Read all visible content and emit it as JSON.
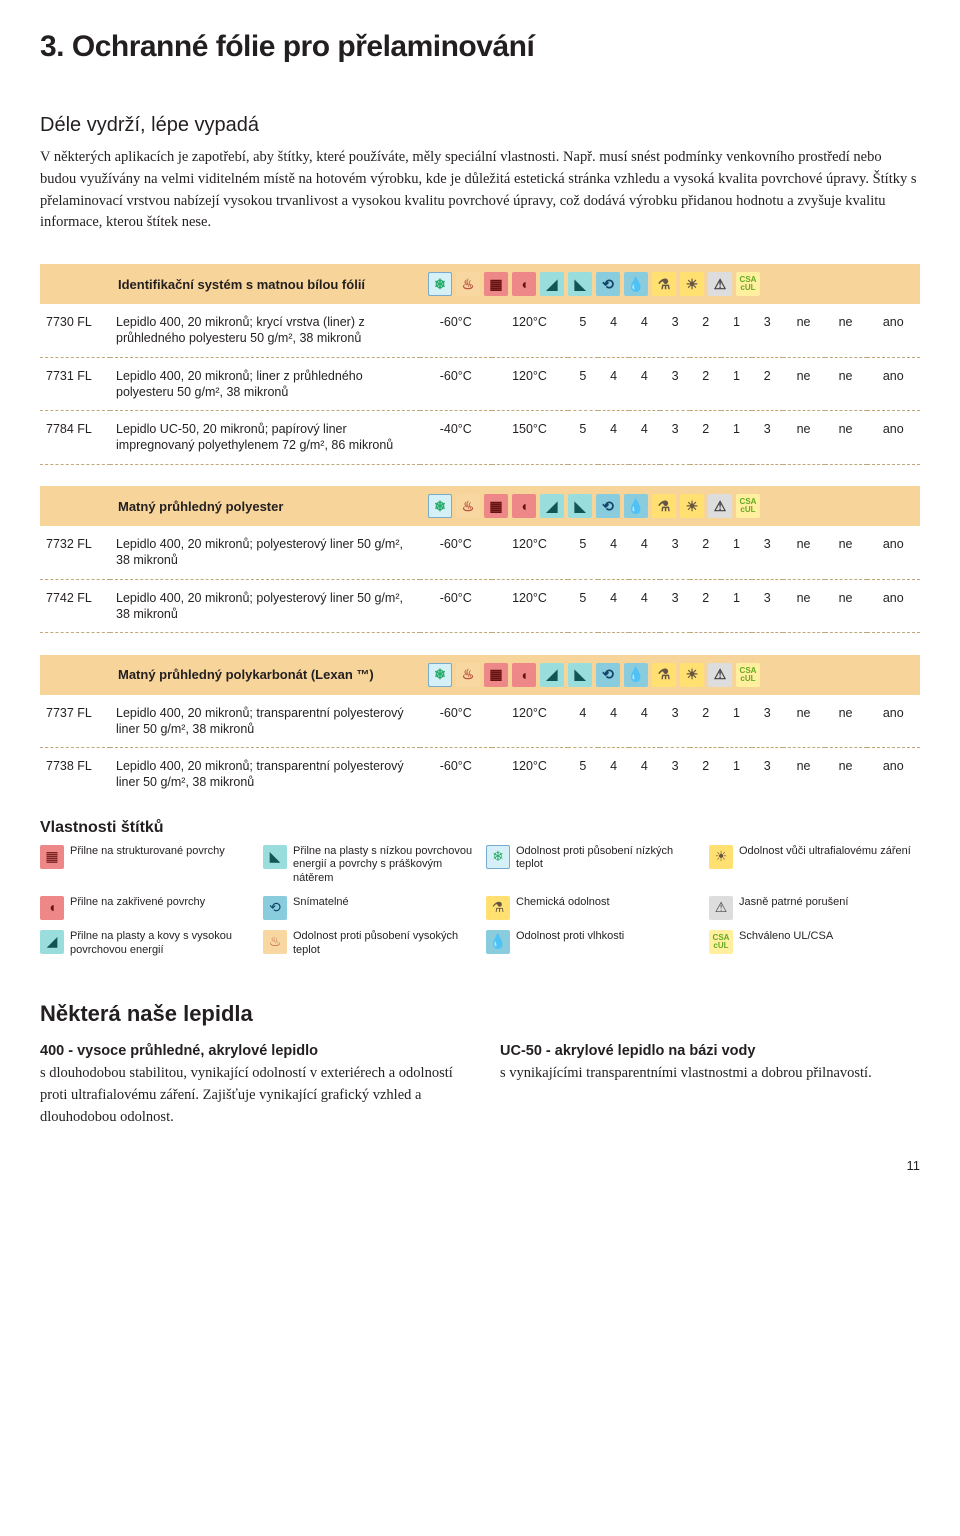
{
  "title": "3. Ochranné fólie pro přelaminování",
  "subtitle": "Déle vydrží, lépe vypadá",
  "intro": "V některých aplikacích je zapotřebí, aby štítky, které používáte, měly speciální vlastnosti. Např. musí snést podmínky venkovního prostředí nebo budou využívány na velmi viditelném místě na hotovém výrobku, kde je důležitá estetická stránka vzhledu a vysoká kvalita povrchové úpravy. Štítky s přelaminovací vrstvou nabízejí vysokou trvanlivost a vysokou kvalitu povrchové úpravy, což dodává výrobku přidanou hodnotu a zvyšuje kvalitu informace, kterou štítek nese.",
  "groups": [
    {
      "header": "Identifikační systém s matnou bílou fólií",
      "rows": [
        {
          "id": "7730 FL",
          "desc": "Lepidlo 400, 20 mikronů; krycí vrstva (liner) z průhledného polyesteru 50 g/m², 38 mikronů",
          "cols": [
            "-60°C",
            "120°C",
            "5",
            "4",
            "4",
            "3",
            "2",
            "1",
            "3",
            "ne",
            "ne",
            "ano"
          ]
        },
        {
          "id": "7731 FL",
          "desc": "Lepidlo 400, 20 mikronů; liner z průhledného polyesteru 50 g/m², 38 mikronů",
          "cols": [
            "-60°C",
            "120°C",
            "5",
            "4",
            "4",
            "3",
            "2",
            "1",
            "2",
            "ne",
            "ne",
            "ano"
          ]
        },
        {
          "id": "7784 FL",
          "desc": "Lepidlo UC-50, 20 mikronů; papírový liner impregnovaný polyethylenem 72 g/m², 86 mikronů",
          "cols": [
            "-40°C",
            "150°C",
            "5",
            "4",
            "4",
            "3",
            "2",
            "1",
            "3",
            "ne",
            "ne",
            "ano"
          ]
        }
      ]
    },
    {
      "header": "Matný průhledný polyester",
      "rows": [
        {
          "id": "7732 FL",
          "desc": "Lepidlo 400, 20 mikronů; polyesterový liner 50 g/m², 38 mikronů",
          "cols": [
            "-60°C",
            "120°C",
            "5",
            "4",
            "4",
            "3",
            "2",
            "1",
            "3",
            "ne",
            "ne",
            "ano"
          ]
        },
        {
          "id": "7742 FL",
          "desc": "Lepidlo 400, 20 mikronů; polyesterový liner 50 g/m², 38 mikronů",
          "cols": [
            "-60°C",
            "120°C",
            "5",
            "4",
            "4",
            "3",
            "2",
            "1",
            "3",
            "ne",
            "ne",
            "ano"
          ]
        }
      ]
    },
    {
      "header": "Matný průhledný polykarbonát (Lexan ™)",
      "rows": [
        {
          "id": "7737 FL",
          "desc": "Lepidlo 400, 20 mikronů; transparentní polyesterový liner 50 g/m², 38 mikronů",
          "cols": [
            "-60°C",
            "120°C",
            "4",
            "4",
            "4",
            "3",
            "2",
            "1",
            "3",
            "ne",
            "ne",
            "ano"
          ]
        },
        {
          "id": "7738 FL",
          "desc": "Lepidlo 400, 20 mikronů; transparentní polyesterový liner 50 g/m², 38 mikronů",
          "cols": [
            "-60°C",
            "120°C",
            "5",
            "4",
            "4",
            "3",
            "2",
            "1",
            "3",
            "ne",
            "ne",
            "ano"
          ]
        }
      ]
    }
  ],
  "icons": [
    {
      "name": "temp-lo-icon",
      "cls": "ic-temp-lo",
      "glyph": "❄"
    },
    {
      "name": "temp-hi-icon",
      "cls": "ic-temp-hi",
      "glyph": "♨"
    },
    {
      "name": "structured-icon",
      "cls": "ic-struct",
      "glyph": "▦"
    },
    {
      "name": "curved-icon",
      "cls": "ic-curve",
      "glyph": "◖"
    },
    {
      "name": "hse-icon",
      "cls": "ic-hse",
      "glyph": "◢"
    },
    {
      "name": "lse-icon",
      "cls": "ic-lse",
      "glyph": "◣"
    },
    {
      "name": "removable-icon",
      "cls": "ic-remov",
      "glyph": "⟲"
    },
    {
      "name": "moisture-icon",
      "cls": "ic-moist",
      "glyph": "💧"
    },
    {
      "name": "chemical-icon",
      "cls": "ic-chem",
      "glyph": "⚗"
    },
    {
      "name": "uv-icon",
      "cls": "ic-uv",
      "glyph": "☀"
    },
    {
      "name": "tamper-icon",
      "cls": "ic-tamp",
      "glyph": "⚠"
    },
    {
      "name": "ul-csa-icon",
      "cls": "ic-ul",
      "glyph": "CSA\ncUL"
    }
  ],
  "legend": {
    "title": "Vlastnosti štítků",
    "items": [
      {
        "icon": 2,
        "text": "Přilne na strukturované povrchy"
      },
      {
        "icon": 5,
        "text": "Přilne na plasty s nízkou povrchovou energií a povrchy s práškovým nátěrem"
      },
      {
        "icon": 0,
        "text": "Odolnost proti působení nízkých teplot"
      },
      {
        "icon": 9,
        "text": "Odolnost vůči ultrafialovému záření"
      },
      {
        "icon": 3,
        "text": "Přilne na zakřivené povrchy"
      },
      {
        "icon": 6,
        "text": "Snímatelné"
      },
      {
        "icon": 8,
        "text": "Chemická odolnost"
      },
      {
        "icon": 10,
        "text": "Jasně patrné porušení"
      },
      {
        "icon": 4,
        "text": "Přilne na plasty a kovy s vysokou povrchovou energií"
      },
      {
        "icon": 1,
        "text": "Odolnost proti působení vysokých teplot"
      },
      {
        "icon": 7,
        "text": "Odolnost proti vlhkosti"
      },
      {
        "icon": 11,
        "text": "Schváleno UL/CSA"
      }
    ]
  },
  "adhesives": {
    "title": "Některá naše lepidla",
    "left": {
      "bold": "400 - vysoce průhledné, akrylové lepidlo",
      "body": "s dlouhodobou stabilitou, vynikající odolností v exteriérech a odolností proti ultrafialovému záření. Zajišťuje vynikající grafický vzhled a dlouhodobou odolnost."
    },
    "right": {
      "bold": "UC-50 - akrylové lepidlo na bázi vody",
      "body": "s vynikajícími transparentními vlastnostmi a dobrou přilnavostí."
    }
  },
  "page_number": "11"
}
